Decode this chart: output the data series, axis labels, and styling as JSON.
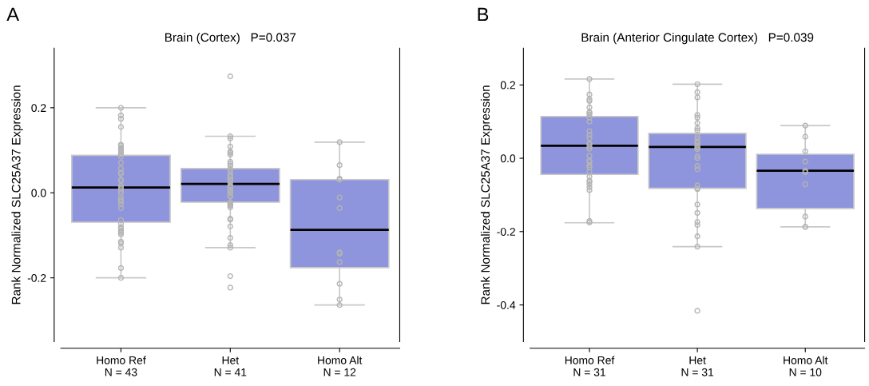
{
  "chart_data": [
    {
      "type": "box",
      "title": "Brain (Cortex)   P=0.037",
      "ylabel": "Rank Normalized SLC25A37 Expression",
      "annotations": [
        "A"
      ],
      "categories": [
        "Homo Ref\nN = 43",
        "Het\nN = 41",
        "Homo Alt\nN = 12"
      ],
      "ylim": [
        -0.35,
        0.34
      ],
      "yticks": [
        {
          "value": -0.2,
          "label": "-0.2"
        },
        {
          "value": 0,
          "label": "0.0"
        },
        {
          "value": 0.2,
          "label": "0.2"
        }
      ],
      "grid": false,
      "legend": false,
      "boxes": [
        {
          "low": -0.2,
          "q1": -0.069,
          "median": 0.0125,
          "q3": 0.088,
          "high": 0.2
        },
        {
          "low": -0.129,
          "q1": -0.022,
          "median": 0.021,
          "q3": 0.057,
          "high": 0.133
        },
        {
          "low": -0.264,
          "q1": -0.176,
          "median": -0.087,
          "q3": 0.031,
          "high": 0.119
        }
      ],
      "colors": [
        "#8f95dc",
        "#8f95dc",
        "#8f95dc"
      ],
      "series": [
        {
          "type": "scatter",
          "marker": "circle",
          "color": "#b4b4b4",
          "x": [
            "Homo Ref\nN = 43",
            "Homo Ref\nN = 43",
            "Homo Ref\nN = 43",
            "Homo Ref\nN = 43",
            "Homo Ref\nN = 43",
            "Homo Ref\nN = 43",
            "Homo Ref\nN = 43",
            "Homo Ref\nN = 43",
            "Homo Ref\nN = 43",
            "Homo Ref\nN = 43",
            "Homo Ref\nN = 43",
            "Homo Ref\nN = 43",
            "Homo Ref\nN = 43",
            "Homo Ref\nN = 43",
            "Homo Ref\nN = 43",
            "Homo Ref\nN = 43",
            "Homo Ref\nN = 43",
            "Homo Ref\nN = 43",
            "Homo Ref\nN = 43",
            "Homo Ref\nN = 43",
            "Homo Ref\nN = 43",
            "Homo Ref\nN = 43",
            "Homo Ref\nN = 43",
            "Homo Ref\nN = 43",
            "Homo Ref\nN = 43",
            "Homo Ref\nN = 43",
            "Homo Ref\nN = 43",
            "Homo Ref\nN = 43",
            "Homo Ref\nN = 43",
            "Homo Ref\nN = 43",
            "Homo Ref\nN = 43",
            "Homo Ref\nN = 43",
            "Homo Ref\nN = 43",
            "Homo Ref\nN = 43",
            "Homo Ref\nN = 43",
            "Homo Ref\nN = 43",
            "Homo Ref\nN = 43",
            "Homo Ref\nN = 43",
            "Homo Ref\nN = 43",
            "Homo Ref\nN = 43",
            "Homo Ref\nN = 43",
            "Homo Ref\nN = 43",
            "Homo Ref\nN = 43",
            "Het\nN = 41",
            "Het\nN = 41",
            "Het\nN = 41",
            "Het\nN = 41",
            "Het\nN = 41",
            "Het\nN = 41",
            "Het\nN = 41",
            "Het\nN = 41",
            "Het\nN = 41",
            "Het\nN = 41",
            "Het\nN = 41",
            "Het\nN = 41",
            "Het\nN = 41",
            "Het\nN = 41",
            "Het\nN = 41",
            "Het\nN = 41",
            "Het\nN = 41",
            "Het\nN = 41",
            "Het\nN = 41",
            "Het\nN = 41",
            "Het\nN = 41",
            "Het\nN = 41",
            "Het\nN = 41",
            "Het\nN = 41",
            "Het\nN = 41",
            "Het\nN = 41",
            "Het\nN = 41",
            "Het\nN = 41",
            "Het\nN = 41",
            "Het\nN = 41",
            "Het\nN = 41",
            "Het\nN = 41",
            "Het\nN = 41",
            "Het\nN = 41",
            "Het\nN = 41",
            "Het\nN = 41",
            "Het\nN = 41",
            "Het\nN = 41",
            "Het\nN = 41",
            "Het\nN = 41",
            "Het\nN = 41",
            "Homo Alt\nN = 12",
            "Homo Alt\nN = 12",
            "Homo Alt\nN = 12",
            "Homo Alt\nN = 12",
            "Homo Alt\nN = 12",
            "Homo Alt\nN = 12",
            "Homo Alt\nN = 12",
            "Homo Alt\nN = 12",
            "Homo Alt\nN = 12",
            "Homo Alt\nN = 12",
            "Homo Alt\nN = 12",
            "Homo Alt\nN = 12"
          ],
          "values": [
            0.2,
            0.182,
            0.174,
            0.155,
            0.113,
            0.112,
            0.107,
            0.104,
            0.101,
            0.099,
            0.096,
            0.091,
            0.085,
            0.071,
            0.057,
            0.048,
            0.045,
            0.031,
            0.028,
            0.017,
            0.014,
            0.01,
            0.004,
            -0.001,
            -0.011,
            -0.016,
            -0.017,
            -0.02,
            -0.027,
            -0.036,
            -0.064,
            -0.073,
            -0.081,
            -0.084,
            -0.089,
            -0.09,
            -0.094,
            -0.098,
            -0.115,
            -0.119,
            -0.129,
            -0.177,
            -0.2,
            0.274,
            0.133,
            0.128,
            0.109,
            0.097,
            0.094,
            0.09,
            0.073,
            0.068,
            0.063,
            0.055,
            0.049,
            0.042,
            0.04,
            0.037,
            0.032,
            0.029,
            0.023,
            0.017,
            0.015,
            0.012,
            0.007,
            0.004,
            0.001,
            -0.001,
            -0.007,
            -0.009,
            -0.022,
            -0.025,
            -0.028,
            -0.03,
            -0.034,
            -0.061,
            -0.062,
            -0.063,
            -0.079,
            -0.106,
            -0.123,
            -0.129,
            -0.196,
            -0.223,
            0.119,
            0.065,
            0.033,
            0.031,
            -0.011,
            -0.036,
            -0.14,
            -0.143,
            -0.163,
            -0.214,
            -0.251,
            -0.264
          ]
        }
      ]
    },
    {
      "type": "box",
      "title": "Brain (Anterior Cingulate Cortex)   P=0.039",
      "ylabel": "Rank Normalized SLC25A37 Expression",
      "annotations": [
        "B"
      ],
      "categories": [
        "Homo Ref\nN = 31",
        "Het\nN = 31",
        "Homo Alt\nN = 10"
      ],
      "ylim": [
        -0.5,
        0.3
      ],
      "yticks": [
        {
          "value": -0.4,
          "label": "-0.4"
        },
        {
          "value": -0.2,
          "label": "-0.2"
        },
        {
          "value": 0,
          "label": "0.0"
        },
        {
          "value": 0.2,
          "label": "0.2"
        }
      ],
      "grid": false,
      "legend": false,
      "boxes": [
        {
          "low": -0.176,
          "q1": -0.044,
          "median": 0.034,
          "q3": 0.114,
          "high": 0.216
        },
        {
          "low": -0.241,
          "q1": -0.082,
          "median": 0.031,
          "q3": 0.068,
          "high": 0.202
        },
        {
          "low": -0.187,
          "q1": -0.137,
          "median": -0.034,
          "q3": 0.011,
          "high": 0.089
        }
      ],
      "colors": [
        "#8f95dc",
        "#8f95dc",
        "#8f95dc"
      ],
      "series": [
        {
          "type": "scatter",
          "marker": "circle",
          "color": "#b4b4b4",
          "x": [
            "Homo Ref\nN = 31",
            "Homo Ref\nN = 31",
            "Homo Ref\nN = 31",
            "Homo Ref\nN = 31",
            "Homo Ref\nN = 31",
            "Homo Ref\nN = 31",
            "Homo Ref\nN = 31",
            "Homo Ref\nN = 31",
            "Homo Ref\nN = 31",
            "Homo Ref\nN = 31",
            "Homo Ref\nN = 31",
            "Homo Ref\nN = 31",
            "Homo Ref\nN = 31",
            "Homo Ref\nN = 31",
            "Homo Ref\nN = 31",
            "Homo Ref\nN = 31",
            "Homo Ref\nN = 31",
            "Homo Ref\nN = 31",
            "Homo Ref\nN = 31",
            "Homo Ref\nN = 31",
            "Homo Ref\nN = 31",
            "Homo Ref\nN = 31",
            "Homo Ref\nN = 31",
            "Homo Ref\nN = 31",
            "Homo Ref\nN = 31",
            "Homo Ref\nN = 31",
            "Homo Ref\nN = 31",
            "Homo Ref\nN = 31",
            "Homo Ref\nN = 31",
            "Homo Ref\nN = 31",
            "Homo Ref\nN = 31",
            "Het\nN = 31",
            "Het\nN = 31",
            "Het\nN = 31",
            "Het\nN = 31",
            "Het\nN = 31",
            "Het\nN = 31",
            "Het\nN = 31",
            "Het\nN = 31",
            "Het\nN = 31",
            "Het\nN = 31",
            "Het\nN = 31",
            "Het\nN = 31",
            "Het\nN = 31",
            "Het\nN = 31",
            "Het\nN = 31",
            "Het\nN = 31",
            "Het\nN = 31",
            "Het\nN = 31",
            "Het\nN = 31",
            "Het\nN = 31",
            "Het\nN = 31",
            "Het\nN = 31",
            "Het\nN = 31",
            "Het\nN = 31",
            "Het\nN = 31",
            "Het\nN = 31",
            "Het\nN = 31",
            "Het\nN = 31",
            "Het\nN = 31",
            "Het\nN = 31",
            "Het\nN = 31",
            "Homo Alt\nN = 10",
            "Homo Alt\nN = 10",
            "Homo Alt\nN = 10",
            "Homo Alt\nN = 10",
            "Homo Alt\nN = 10",
            "Homo Alt\nN = 10",
            "Homo Alt\nN = 10",
            "Homo Alt\nN = 10",
            "Homo Alt\nN = 10",
            "Homo Alt\nN = 10"
          ],
          "values": [
            0.216,
            0.174,
            0.161,
            0.156,
            0.139,
            0.126,
            0.124,
            0.119,
            0.111,
            0.1,
            0.074,
            0.064,
            0.055,
            0.041,
            0.038,
            0.032,
            0.026,
            0.007,
            -0.006,
            -0.01,
            -0.019,
            -0.025,
            -0.036,
            -0.05,
            -0.061,
            -0.064,
            -0.071,
            -0.079,
            -0.087,
            -0.171,
            -0.175,
            0.202,
            0.18,
            0.166,
            0.118,
            0.111,
            0.096,
            0.082,
            0.076,
            0.059,
            0.054,
            0.046,
            0.043,
            0.041,
            0.035,
            0.032,
            0.029,
            0.025,
            0.005,
            0,
            -0.021,
            -0.03,
            -0.074,
            -0.082,
            -0.084,
            -0.126,
            -0.149,
            -0.174,
            -0.182,
            -0.213,
            -0.241,
            -0.416,
            0.089,
            0.059,
            0.019,
            -0.009,
            -0.034,
            -0.038,
            -0.071,
            -0.159,
            -0.187,
            -0.187
          ]
        }
      ]
    }
  ]
}
